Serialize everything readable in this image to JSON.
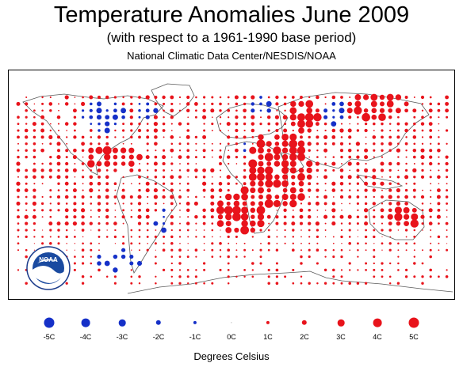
{
  "title": "Temperature Anomalies June 2009",
  "subtitle": "(with respect to a 1961-1990 base period)",
  "source": "National Climatic Data Center/NESDIS/NOAA",
  "logo_text": "NOAA",
  "colors": {
    "warm": "#e8131b",
    "cold": "#1530c8",
    "land_outline": "#5a5a5a"
  },
  "legend": {
    "items": [
      {
        "label": "-5C",
        "value": -5
      },
      {
        "label": "-4C",
        "value": -4
      },
      {
        "label": "-3C",
        "value": -3
      },
      {
        "label": "-2C",
        "value": -2
      },
      {
        "label": "-1C",
        "value": -1
      },
      {
        "label": "0C",
        "value": 0
      },
      {
        "label": "1C",
        "value": 1
      },
      {
        "label": "2C",
        "value": 2
      },
      {
        "label": "3C",
        "value": 3
      },
      {
        "label": "4C",
        "value": 4
      },
      {
        "label": "5C",
        "value": 5
      }
    ]
  },
  "units_label": "Degrees Celsius"
}
